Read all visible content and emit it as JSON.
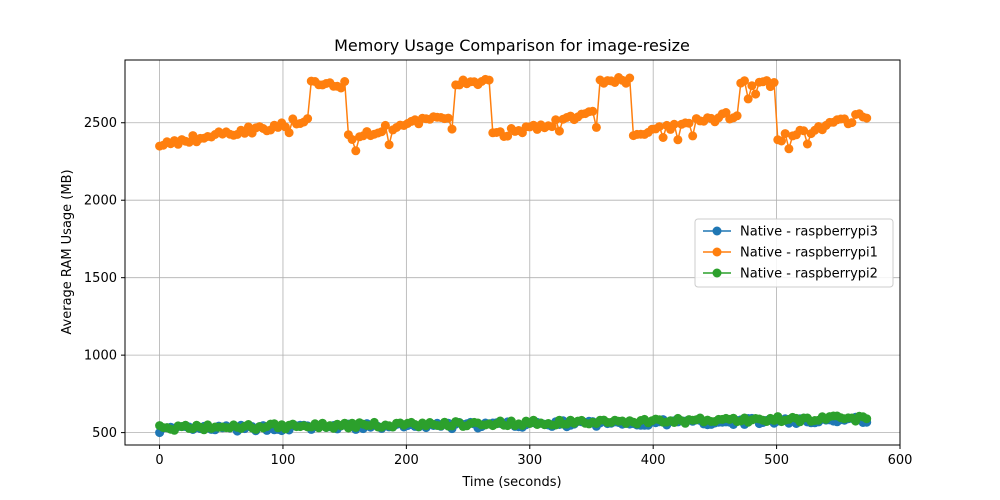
{
  "chart_data": {
    "type": "line",
    "title": "Memory Usage Comparison for image-resize",
    "xlabel": "Time (seconds)",
    "ylabel": "Average RAM Usage (MB)",
    "xlim": [
      -28,
      600
    ],
    "ylim": [
      420,
      2905
    ],
    "xticks": [
      0,
      100,
      200,
      300,
      400,
      500,
      600
    ],
    "yticks": [
      500,
      1000,
      1500,
      2000,
      2500
    ],
    "grid": true,
    "legend_position": "center-right",
    "x_step": 3,
    "series": [
      {
        "name": "Native - raspberrypi3",
        "color": "#1f77b4"
      },
      {
        "name": "Native - raspberrypi1",
        "color": "#ff7f0e"
      },
      {
        "name": "Native - raspberrypi2",
        "color": "#2ca02c"
      }
    ]
  }
}
